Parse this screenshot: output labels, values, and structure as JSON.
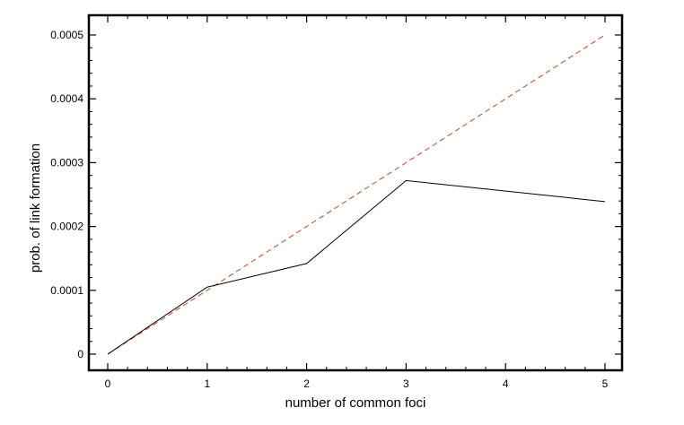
{
  "chart_data": {
    "type": "line",
    "title": "",
    "xlabel": "number of common foci",
    "ylabel": "prob. of link formation",
    "xlim": [
      0,
      5
    ],
    "ylim": [
      0,
      0.0005
    ],
    "xticks": [
      0,
      1,
      2,
      3,
      4,
      5
    ],
    "xtick_labels": [
      "0",
      "1",
      "2",
      "3",
      "4",
      "5"
    ],
    "yticks": [
      0,
      0.0001,
      0.0002,
      0.0003,
      0.0004,
      0.0005
    ],
    "ytick_labels": [
      "0",
      "0.0001",
      "0.0002",
      "0.0003",
      "0.0004",
      "0.0005"
    ],
    "grid": false,
    "legend": "none",
    "series": [
      {
        "style": "solid",
        "color": "#000000",
        "x": [
          0,
          1,
          2,
          3,
          5
        ],
        "y": [
          0,
          0.000105,
          0.000142,
          0.000272,
          0.000239
        ]
      },
      {
        "style": "dashed",
        "color": "#d0542c",
        "x": [
          0,
          5
        ],
        "y": [
          0,
          0.0005
        ]
      }
    ]
  }
}
